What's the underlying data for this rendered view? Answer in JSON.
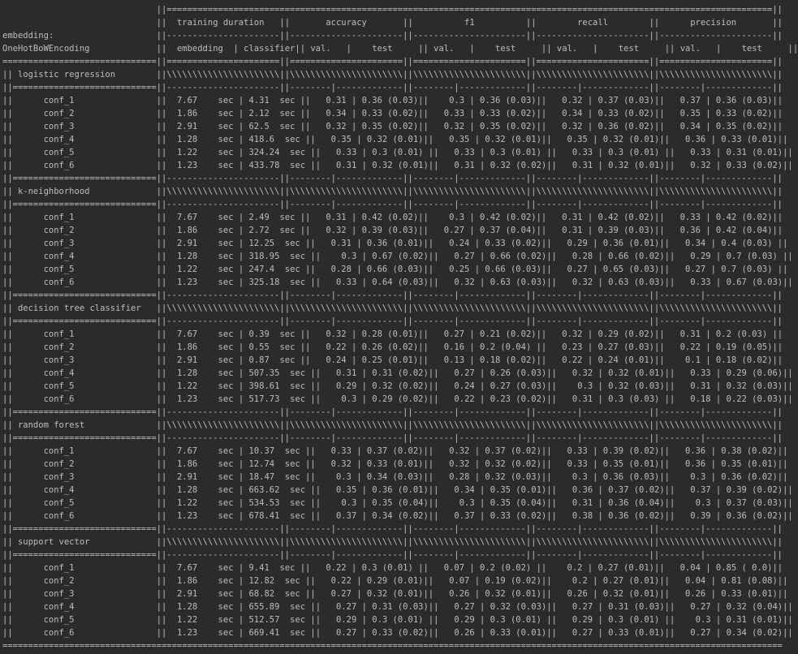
{
  "header": {
    "embedding_label": "embedding:",
    "embedding_value": "OneHotBoWEncoding",
    "group_training": "training duration",
    "group_accuracy": "accuracy",
    "group_f1": "f1",
    "group_recall": "recall",
    "group_precision": "precision",
    "sub_embedding": "embedding",
    "sub_classifier": "classifier",
    "sub_val": "val.",
    "sub_test": "test",
    "unit": "sec"
  },
  "models": [
    {
      "name": "logistic regression",
      "rows": [
        {
          "conf": "conf_1",
          "emb": "7.67",
          "clf": "4.31",
          "acc_val": "0.31",
          "acc_test": "0.36 (0.03)",
          "f1_val": "0.3",
          "f1_test": "0.36 (0.03)",
          "rec_val": "0.32",
          "rec_test": "0.37 (0.03)",
          "prec_val": "0.37",
          "prec_test": "0.36 (0.03)"
        },
        {
          "conf": "conf_2",
          "emb": "1.86",
          "clf": "2.12",
          "acc_val": "0.34",
          "acc_test": "0.33 (0.02)",
          "f1_val": "0.33",
          "f1_test": "0.33 (0.02)",
          "rec_val": "0.34",
          "rec_test": "0.33 (0.02)",
          "prec_val": "0.35",
          "prec_test": "0.33 (0.02)"
        },
        {
          "conf": "conf_3",
          "emb": "2.91",
          "clf": "62.5",
          "acc_val": "0.32",
          "acc_test": "0.35 (0.02)",
          "f1_val": "0.32",
          "f1_test": "0.35 (0.02)",
          "rec_val": "0.32",
          "rec_test": "0.36 (0.02)",
          "prec_val": "0.34",
          "prec_test": "0.35 (0.02)"
        },
        {
          "conf": "conf_4",
          "emb": "1.28",
          "clf": "418.6",
          "acc_val": "0.35",
          "acc_test": "0.32 (0.01)",
          "f1_val": "0.35",
          "f1_test": "0.32 (0.01)",
          "rec_val": "0.35",
          "rec_test": "0.32 (0.01)",
          "prec_val": "0.36",
          "prec_test": "0.33 (0.01)"
        },
        {
          "conf": "conf_5",
          "emb": "1.22",
          "clf": "324.24",
          "acc_val": "0.33",
          "acc_test": "0.3 (0.01)",
          "f1_val": "0.33",
          "f1_test": "0.3 (0.01)",
          "rec_val": "0.33",
          "rec_test": "0.3 (0.01)",
          "prec_val": "0.33",
          "prec_test": "0.31 (0.01)"
        },
        {
          "conf": "conf_6",
          "emb": "1.23",
          "clf": "433.78",
          "acc_val": "0.31",
          "acc_test": "0.32 (0.01)",
          "f1_val": "0.31",
          "f1_test": "0.32 (0.02)",
          "rec_val": "0.31",
          "rec_test": "0.32 (0.01)",
          "prec_val": "0.32",
          "prec_test": "0.33 (0.02)"
        }
      ]
    },
    {
      "name": "k-neighborhood",
      "rows": [
        {
          "conf": "conf_1",
          "emb": "7.67",
          "clf": "2.49",
          "acc_val": "0.31",
          "acc_test": "0.42 (0.02)",
          "f1_val": "0.3",
          "f1_test": "0.42 (0.02)",
          "rec_val": "0.31",
          "rec_test": "0.42 (0.02)",
          "prec_val": "0.33",
          "prec_test": "0.42 (0.02)"
        },
        {
          "conf": "conf_2",
          "emb": "1.86",
          "clf": "2.72",
          "acc_val": "0.32",
          "acc_test": "0.39 (0.03)",
          "f1_val": "0.27",
          "f1_test": "0.37 (0.04)",
          "rec_val": "0.31",
          "rec_test": "0.39 (0.03)",
          "prec_val": "0.36",
          "prec_test": "0.42 (0.04)"
        },
        {
          "conf": "conf_3",
          "emb": "2.91",
          "clf": "12.25",
          "acc_val": "0.31",
          "acc_test": "0.36 (0.01)",
          "f1_val": "0.24",
          "f1_test": "0.33 (0.02)",
          "rec_val": "0.29",
          "rec_test": "0.36 (0.01)",
          "prec_val": "0.34",
          "prec_test": "0.4 (0.03)"
        },
        {
          "conf": "conf_4",
          "emb": "1.28",
          "clf": "318.95",
          "acc_val": "0.3",
          "acc_test": "0.67 (0.02)",
          "f1_val": "0.27",
          "f1_test": "0.66 (0.02)",
          "rec_val": "0.28",
          "rec_test": "0.66 (0.02)",
          "prec_val": "0.29",
          "prec_test": "0.7 (0.03)"
        },
        {
          "conf": "conf_5",
          "emb": "1.22",
          "clf": "247.4",
          "acc_val": "0.28",
          "acc_test": "0.66 (0.03)",
          "f1_val": "0.25",
          "f1_test": "0.66 (0.03)",
          "rec_val": "0.27",
          "rec_test": "0.65 (0.03)",
          "prec_val": "0.27",
          "prec_test": "0.7 (0.03)"
        },
        {
          "conf": "conf_6",
          "emb": "1.23",
          "clf": "325.18",
          "acc_val": "0.33",
          "acc_test": "0.64 (0.03)",
          "f1_val": "0.32",
          "f1_test": "0.63 (0.03)",
          "rec_val": "0.32",
          "rec_test": "0.63 (0.03)",
          "prec_val": "0.33",
          "prec_test": "0.67 (0.03)"
        }
      ]
    },
    {
      "name": "decision tree classifier",
      "rows": [
        {
          "conf": "conf_1",
          "emb": "7.67",
          "clf": "0.39",
          "acc_val": "0.32",
          "acc_test": "0.28 (0.01)",
          "f1_val": "0.27",
          "f1_test": "0.21 (0.02)",
          "rec_val": "0.32",
          "rec_test": "0.29 (0.02)",
          "prec_val": "0.31",
          "prec_test": "0.2 (0.03)"
        },
        {
          "conf": "conf_2",
          "emb": "1.86",
          "clf": "0.55",
          "acc_val": "0.22",
          "acc_test": "0.26 (0.02)",
          "f1_val": "0.16",
          "f1_test": "0.2 (0.04)",
          "rec_val": "0.23",
          "rec_test": "0.27 (0.03)",
          "prec_val": "0.22",
          "prec_test": "0.19 (0.05)"
        },
        {
          "conf": "conf_3",
          "emb": "2.91",
          "clf": "0.87",
          "acc_val": "0.24",
          "acc_test": "0.25 (0.01)",
          "f1_val": "0.13",
          "f1_test": "0.18 (0.02)",
          "rec_val": "0.22",
          "rec_test": "0.24 (0.01)",
          "prec_val": "0.1",
          "prec_test": "0.18 (0.02)"
        },
        {
          "conf": "conf_4",
          "emb": "1.28",
          "clf": "507.35",
          "acc_val": "0.31",
          "acc_test": "0.31 (0.02)",
          "f1_val": "0.27",
          "f1_test": "0.26 (0.03)",
          "rec_val": "0.32",
          "rec_test": "0.32 (0.01)",
          "prec_val": "0.33",
          "prec_test": "0.29 (0.06)"
        },
        {
          "conf": "conf_5",
          "emb": "1.22",
          "clf": "398.61",
          "acc_val": "0.29",
          "acc_test": "0.32 (0.02)",
          "f1_val": "0.24",
          "f1_test": "0.27 (0.03)",
          "rec_val": "0.3",
          "rec_test": "0.32 (0.03)",
          "prec_val": "0.31",
          "prec_test": "0.32 (0.03)"
        },
        {
          "conf": "conf_6",
          "emb": "1.23",
          "clf": "517.73",
          "acc_val": "0.3",
          "acc_test": "0.29 (0.02)",
          "f1_val": "0.22",
          "f1_test": "0.23 (0.02)",
          "rec_val": "0.31",
          "rec_test": "0.3 (0.03)",
          "prec_val": "0.18",
          "prec_test": "0.22 (0.03)"
        }
      ]
    },
    {
      "name": "random forest",
      "rows": [
        {
          "conf": "conf_1",
          "emb": "7.67",
          "clf": "10.37",
          "acc_val": "0.33",
          "acc_test": "0.37 (0.02)",
          "f1_val": "0.32",
          "f1_test": "0.37 (0.02)",
          "rec_val": "0.33",
          "rec_test": "0.39 (0.02)",
          "prec_val": "0.36",
          "prec_test": "0.38 (0.02)"
        },
        {
          "conf": "conf_2",
          "emb": "1.86",
          "clf": "12.74",
          "acc_val": "0.32",
          "acc_test": "0.33 (0.01)",
          "f1_val": "0.32",
          "f1_test": "0.32 (0.02)",
          "rec_val": "0.33",
          "rec_test": "0.35 (0.01)",
          "prec_val": "0.36",
          "prec_test": "0.35 (0.01)"
        },
        {
          "conf": "conf_3",
          "emb": "2.91",
          "clf": "18.47",
          "acc_val": "0.3",
          "acc_test": "0.34 (0.03)",
          "f1_val": "0.28",
          "f1_test": "0.32 (0.03)",
          "rec_val": "0.3",
          "rec_test": "0.36 (0.03)",
          "prec_val": "0.3",
          "prec_test": "0.36 (0.02)"
        },
        {
          "conf": "conf_4",
          "emb": "1.28",
          "clf": "663.62",
          "acc_val": "0.35",
          "acc_test": "0.36 (0.01)",
          "f1_val": "0.34",
          "f1_test": "0.35 (0.01)",
          "rec_val": "0.36",
          "rec_test": "0.37 (0.02)",
          "prec_val": "0.37",
          "prec_test": "0.39 (0.02)"
        },
        {
          "conf": "conf_5",
          "emb": "1.22",
          "clf": "534.53",
          "acc_val": "0.3",
          "acc_test": "0.35 (0.04)",
          "f1_val": "0.3",
          "f1_test": "0.35 (0.04)",
          "rec_val": "0.31",
          "rec_test": "0.36 (0.04)",
          "prec_val": "0.3",
          "prec_test": "0.37 (0.03)"
        },
        {
          "conf": "conf_6",
          "emb": "1.23",
          "clf": "678.41",
          "acc_val": "0.37",
          "acc_test": "0.34 (0.02)",
          "f1_val": "0.37",
          "f1_test": "0.33 (0.02)",
          "rec_val": "0.38",
          "rec_test": "0.36 (0.02)",
          "prec_val": "0.39",
          "prec_test": "0.36 (0.02)"
        }
      ]
    },
    {
      "name": "support vector",
      "rows": [
        {
          "conf": "conf_1",
          "emb": "7.67",
          "clf": "9.41",
          "acc_val": "0.22",
          "acc_test": "0.3 (0.01)",
          "f1_val": "0.07",
          "f1_test": "0.2 (0.02)",
          "rec_val": "0.2",
          "rec_test": "0.27 (0.01)",
          "prec_val": "0.04",
          "prec_test": "0.85 ( 0.0)"
        },
        {
          "conf": "conf_2",
          "emb": "1.86",
          "clf": "12.82",
          "acc_val": "0.22",
          "acc_test": "0.29 (0.01)",
          "f1_val": "0.07",
          "f1_test": "0.19 (0.02)",
          "rec_val": "0.2",
          "rec_test": "0.27 (0.01)",
          "prec_val": "0.04",
          "prec_test": "0.81 (0.08)"
        },
        {
          "conf": "conf_3",
          "emb": "2.91",
          "clf": "68.82",
          "acc_val": "0.27",
          "acc_test": "0.32 (0.01)",
          "f1_val": "0.26",
          "f1_test": "0.32 (0.01)",
          "rec_val": "0.26",
          "rec_test": "0.32 (0.01)",
          "prec_val": "0.26",
          "prec_test": "0.33 (0.01)"
        },
        {
          "conf": "conf_4",
          "emb": "1.28",
          "clf": "655.89",
          "acc_val": "0.27",
          "acc_test": "0.31 (0.03)",
          "f1_val": "0.27",
          "f1_test": "0.32 (0.03)",
          "rec_val": "0.27",
          "rec_test": "0.31 (0.03)",
          "prec_val": "0.27",
          "prec_test": "0.32 (0.04)"
        },
        {
          "conf": "conf_5",
          "emb": "1.22",
          "clf": "512.57",
          "acc_val": "0.29",
          "acc_test": "0.3 (0.01)",
          "f1_val": "0.29",
          "f1_test": "0.3 (0.01)",
          "rec_val": "0.29",
          "rec_test": "0.3 (0.01)",
          "prec_val": "0.3",
          "prec_test": "0.31 (0.01)"
        },
        {
          "conf": "conf_6",
          "emb": "1.23",
          "clf": "669.41",
          "acc_val": "0.27",
          "acc_test": "0.33 (0.02)",
          "f1_val": "0.26",
          "f1_test": "0.33 (0.01)",
          "rec_val": "0.27",
          "rec_test": "0.33 (0.01)",
          "prec_val": "0.27",
          "prec_test": "0.34 (0.02)"
        }
      ]
    }
  ],
  "colors": {
    "background": "#2b2b2b",
    "text": "#bcbec4"
  }
}
